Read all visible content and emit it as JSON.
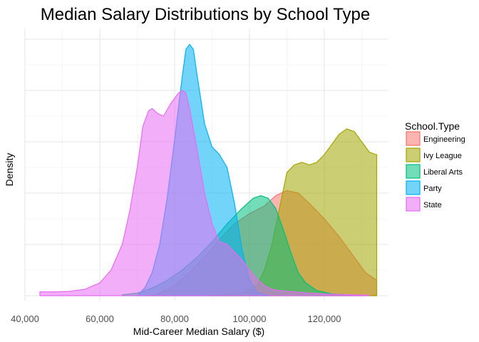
{
  "chart_data": {
    "type": "area",
    "title": "Median Salary Distributions by School Type",
    "xlabel": "Mid-Career Median Salary ($)",
    "ylabel": "Density",
    "xlim": [
      40000,
      134000
    ],
    "ylim": [
      0,
      1
    ],
    "x_ticks": [
      40000,
      60000,
      80000,
      100000,
      120000
    ],
    "x_tick_labels": [
      "40,000",
      "60,000",
      "80,000",
      "100,000",
      "120,000"
    ],
    "y_ticks_labeled": false,
    "grid": true,
    "legend": {
      "title": "School.Type",
      "position": "right"
    },
    "series": [
      {
        "name": "Engineering",
        "color": "#F8766D",
        "points": [
          [
            73000,
            0
          ],
          [
            76000,
            0.01
          ],
          [
            80000,
            0.04
          ],
          [
            84000,
            0.09
          ],
          [
            88000,
            0.15
          ],
          [
            92000,
            0.22
          ],
          [
            96000,
            0.28
          ],
          [
            100000,
            0.32
          ],
          [
            104000,
            0.35
          ],
          [
            107000,
            0.39
          ],
          [
            110000,
            0.41
          ],
          [
            113000,
            0.4
          ],
          [
            116000,
            0.36
          ],
          [
            120000,
            0.3
          ],
          [
            124000,
            0.23
          ],
          [
            128000,
            0.15
          ],
          [
            131000,
            0.09
          ],
          [
            134000,
            0.06
          ]
        ]
      },
      {
        "name": "Ivy League",
        "color": "#A3A500",
        "points": [
          [
            89000,
            0
          ],
          [
            94000,
            0.005
          ],
          [
            98000,
            0.01
          ],
          [
            102000,
            0.04
          ],
          [
            104000,
            0.1
          ],
          [
            106000,
            0.2
          ],
          [
            108000,
            0.34
          ],
          [
            110000,
            0.48
          ],
          [
            112000,
            0.51
          ],
          [
            114000,
            0.52
          ],
          [
            116000,
            0.51
          ],
          [
            118000,
            0.52
          ],
          [
            120000,
            0.55
          ],
          [
            122000,
            0.59
          ],
          [
            124000,
            0.63
          ],
          [
            126000,
            0.65
          ],
          [
            128000,
            0.64
          ],
          [
            130000,
            0.6
          ],
          [
            132000,
            0.56
          ],
          [
            133800,
            0.55
          ],
          [
            134000,
            0.55
          ]
        ]
      },
      {
        "name": "Liberal Arts",
        "color": "#00BF7D",
        "points": [
          [
            66000,
            0.003
          ],
          [
            70000,
            0.01
          ],
          [
            74000,
            0.03
          ],
          [
            78000,
            0.06
          ],
          [
            82000,
            0.1
          ],
          [
            86000,
            0.15
          ],
          [
            90000,
            0.21
          ],
          [
            94000,
            0.28
          ],
          [
            98000,
            0.34
          ],
          [
            101000,
            0.38
          ],
          [
            103000,
            0.39
          ],
          [
            105000,
            0.38
          ],
          [
            107000,
            0.34
          ],
          [
            109000,
            0.26
          ],
          [
            111000,
            0.17
          ],
          [
            113000,
            0.09
          ],
          [
            115000,
            0.05
          ],
          [
            118000,
            0.02
          ],
          [
            122000,
            0.007
          ],
          [
            126000,
            0.003
          ],
          [
            130000,
            0.002
          ]
        ]
      },
      {
        "name": "Party",
        "color": "#00B0F6",
        "points": [
          [
            70000,
            0
          ],
          [
            72000,
            0.03
          ],
          [
            74000,
            0.09
          ],
          [
            76000,
            0.2
          ],
          [
            78000,
            0.38
          ],
          [
            80000,
            0.61
          ],
          [
            82000,
            0.85
          ],
          [
            83000,
            0.96
          ],
          [
            84000,
            0.98
          ],
          [
            85000,
            0.96
          ],
          [
            86000,
            0.86
          ],
          [
            88000,
            0.67
          ],
          [
            90000,
            0.58
          ],
          [
            92000,
            0.55
          ],
          [
            94000,
            0.5
          ],
          [
            96000,
            0.36
          ],
          [
            98000,
            0.18
          ],
          [
            100000,
            0.06
          ],
          [
            102000,
            0.015
          ],
          [
            104000,
            0.003
          ],
          [
            106000,
            0
          ]
        ]
      },
      {
        "name": "State",
        "color": "#E76BF3",
        "points": [
          [
            44000,
            0.015
          ],
          [
            48000,
            0.015
          ],
          [
            52000,
            0.017
          ],
          [
            56000,
            0.025
          ],
          [
            60000,
            0.05
          ],
          [
            63000,
            0.1
          ],
          [
            66000,
            0.2
          ],
          [
            68000,
            0.33
          ],
          [
            70000,
            0.5
          ],
          [
            71500,
            0.66
          ],
          [
            73000,
            0.72
          ],
          [
            74000,
            0.73
          ],
          [
            75500,
            0.71
          ],
          [
            77000,
            0.7
          ],
          [
            79000,
            0.75
          ],
          [
            81000,
            0.79
          ],
          [
            82000,
            0.8
          ],
          [
            83000,
            0.79
          ],
          [
            84000,
            0.73
          ],
          [
            86000,
            0.57
          ],
          [
            88000,
            0.4
          ],
          [
            90000,
            0.28
          ],
          [
            92000,
            0.21
          ],
          [
            94000,
            0.2
          ],
          [
            96000,
            0.17
          ],
          [
            98000,
            0.14
          ],
          [
            100000,
            0.1
          ],
          [
            102000,
            0.065
          ],
          [
            104000,
            0.04
          ],
          [
            106000,
            0.025
          ],
          [
            108000,
            0.02
          ],
          [
            112000,
            0.015
          ],
          [
            116000,
            0.01
          ],
          [
            120000,
            0.007
          ],
          [
            124000,
            0.005
          ],
          [
            128000,
            0.003
          ],
          [
            132000,
            0.002
          ]
        ]
      }
    ]
  }
}
